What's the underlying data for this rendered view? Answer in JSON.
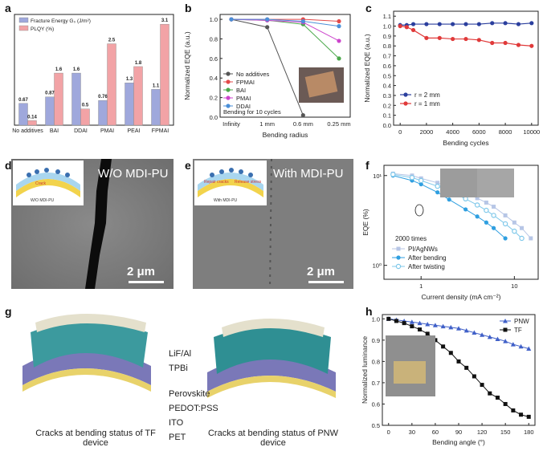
{
  "panels": {
    "a": "a",
    "b": "b",
    "c": "c",
    "d": "d",
    "e": "e",
    "f": "f",
    "g": "g",
    "h": "h"
  },
  "chart_data": [
    {
      "id": "a",
      "type": "bar",
      "categories": [
        "No additives",
        "BAI",
        "DDAI",
        "PMAI",
        "PEAI",
        "FPMAI"
      ],
      "series": [
        {
          "name": "Fracture Energy G₀ (J/m²)",
          "values": [
            0.67,
            0.87,
            1.6,
            0.76,
            1.3,
            1.1
          ],
          "labels": [
            "0.67",
            "0.87",
            "1.6",
            "0.76",
            "1.3",
            "1.1"
          ],
          "color": "#9fa8dc"
        },
        {
          "name": "PLQY (%)",
          "values": [
            0.14,
            1.6,
            0.5,
            2.5,
            1.8,
            3.1
          ],
          "labels": [
            "0.14",
            "1.6",
            "0.5",
            "2.5",
            "1.8",
            "3.1"
          ],
          "color": "#f2a3a6"
        }
      ],
      "ylim": [
        0,
        3.4
      ],
      "legend": "top-left"
    },
    {
      "id": "b",
      "type": "line",
      "categories": [
        "Infinity",
        "1 mm",
        "0.6 mm",
        "0.25 mm"
      ],
      "series": [
        {
          "name": "No additives",
          "values": [
            1.0,
            0.92,
            0.02,
            null
          ],
          "color": "#555555"
        },
        {
          "name": "FPMAI",
          "values": [
            1.0,
            1.0,
            1.0,
            0.98
          ],
          "color": "#e34a4a"
        },
        {
          "name": "BAI",
          "values": [
            1.0,
            0.99,
            0.95,
            0.6
          ],
          "color": "#4aa84a"
        },
        {
          "name": "PMAI",
          "values": [
            1.0,
            0.99,
            0.97,
            0.78
          ],
          "color": "#cc44cc"
        },
        {
          "name": "DDAI",
          "values": [
            1.0,
            1.0,
            0.98,
            0.93
          ],
          "color": "#4a8fd8"
        }
      ],
      "yticks": [
        "0.0",
        "0.2",
        "0.4",
        "0.6",
        "0.8",
        "1.0"
      ],
      "ylim": [
        0,
        1.05
      ],
      "xlabel": "Bending radius",
      "ylabel": "Normalized EQE (a.u.)",
      "annotation": "Bending for 10 cycles",
      "legend": "left"
    },
    {
      "id": "c",
      "type": "line",
      "x": [
        0,
        500,
        1000,
        2000,
        3000,
        4000,
        5000,
        6000,
        7000,
        8000,
        9000,
        10000
      ],
      "series": [
        {
          "name": "r = 2 mm",
          "values": [
            1.01,
            1.01,
            1.02,
            1.02,
            1.02,
            1.02,
            1.02,
            1.02,
            1.03,
            1.03,
            1.02,
            1.03
          ],
          "color": "#2b3f9e"
        },
        {
          "name": "r = 1 mm",
          "values": [
            1.0,
            0.99,
            0.96,
            0.88,
            0.88,
            0.87,
            0.87,
            0.86,
            0.83,
            0.83,
            0.81,
            0.8
          ],
          "color": "#e03a3a"
        }
      ],
      "xticks": [
        "0",
        "2000",
        "4000",
        "6000",
        "8000",
        "10000"
      ],
      "yticks": [
        "0.0",
        "0.1",
        "0.2",
        "0.3",
        "0.4",
        "0.5",
        "0.6",
        "0.7",
        "0.8",
        "0.9",
        "1.0",
        "1.1"
      ],
      "ylim": [
        0,
        1.15
      ],
      "xlim": [
        -500,
        10500
      ],
      "xlabel": "Bending cycles",
      "ylabel": "Normalized EQE (a.u.)",
      "legend": "bottom-left"
    },
    {
      "id": "f",
      "type": "line",
      "x": [
        0.5,
        0.8,
        1,
        1.5,
        2,
        3,
        4,
        5,
        6,
        8,
        10,
        12,
        15
      ],
      "series": [
        {
          "name": "PI/AgNWs",
          "values": [
            10.5,
            10,
            9.3,
            8.3,
            7.5,
            6.4,
            5.6,
            5,
            4.5,
            3.6,
            3.0,
            2.6,
            2.0
          ],
          "color": "#b7c6e6"
        },
        {
          "name": "After bending",
          "values": [
            10,
            8.8,
            8,
            6.5,
            5.4,
            4.2,
            3.5,
            3.0,
            2.6,
            2.0,
            null,
            null,
            null
          ],
          "color": "#2f9fe0"
        },
        {
          "name": "After twisting",
          "values": [
            10.3,
            9.5,
            8.8,
            7.6,
            6.7,
            5.5,
            4.7,
            4.1,
            3.6,
            2.9,
            2.4,
            2.0,
            null
          ],
          "color": "#7fc8ea"
        }
      ],
      "xscale": "log",
      "yscale": "log",
      "xticks": [
        "1",
        "10"
      ],
      "yticks": [
        "10⁰",
        "10¹"
      ],
      "xlabel": "Current density (mA cm⁻²)",
      "ylabel": "EQE (%)",
      "annotation": "2000 times",
      "legend": "bottom-left"
    },
    {
      "id": "h",
      "type": "line",
      "x": [
        0,
        10,
        20,
        30,
        40,
        50,
        60,
        70,
        80,
        90,
        100,
        110,
        120,
        130,
        140,
        150,
        160,
        170,
        180
      ],
      "series": [
        {
          "name": "PNW",
          "values": [
            1.0,
            0.995,
            0.99,
            0.985,
            0.98,
            0.975,
            0.97,
            0.965,
            0.96,
            0.955,
            0.945,
            0.935,
            0.925,
            0.915,
            0.905,
            0.895,
            0.88,
            0.87,
            0.86
          ],
          "color": "#4060c8"
        },
        {
          "name": "TF",
          "values": [
            1.0,
            0.99,
            0.98,
            0.965,
            0.95,
            0.93,
            0.9,
            0.87,
            0.84,
            0.8,
            0.77,
            0.73,
            0.69,
            0.65,
            0.63,
            0.6,
            0.57,
            0.55,
            0.54
          ],
          "color": "#111111"
        }
      ],
      "xticks": [
        "0",
        "30",
        "60",
        "90",
        "120",
        "150",
        "180"
      ],
      "yticks": [
        "0.5",
        "0.6",
        "0.7",
        "0.8",
        "0.9",
        "1.0"
      ],
      "ylim": [
        0.5,
        1.02
      ],
      "xlim": [
        -8,
        188
      ],
      "xlabel": "Bending angle (°)",
      "ylabel": "Normalized luminance",
      "legend": "top-right"
    }
  ],
  "d": {
    "label": "W/O MDI-PU",
    "scale": "2 μm",
    "inset_label": "W/O MDI-PU",
    "inset_crack": "Crack"
  },
  "e": {
    "label": "With MDI-PU",
    "scale": "2 μm",
    "inset_label": "With MDI-PU",
    "inset_repair": "Repair cracks",
    "inset_release": "Release stress"
  },
  "g": {
    "layers": [
      "LiF/Al",
      "TPBi",
      "Perovskite",
      "PEDOT:PSS",
      "ITO",
      "PET"
    ],
    "caption_left": "Cracks at bending  status of TF device",
    "caption_right": "Cracks at bending  status of PNW device"
  },
  "colors": {
    "axis": "#222222",
    "sem": "#7b7b7b"
  }
}
